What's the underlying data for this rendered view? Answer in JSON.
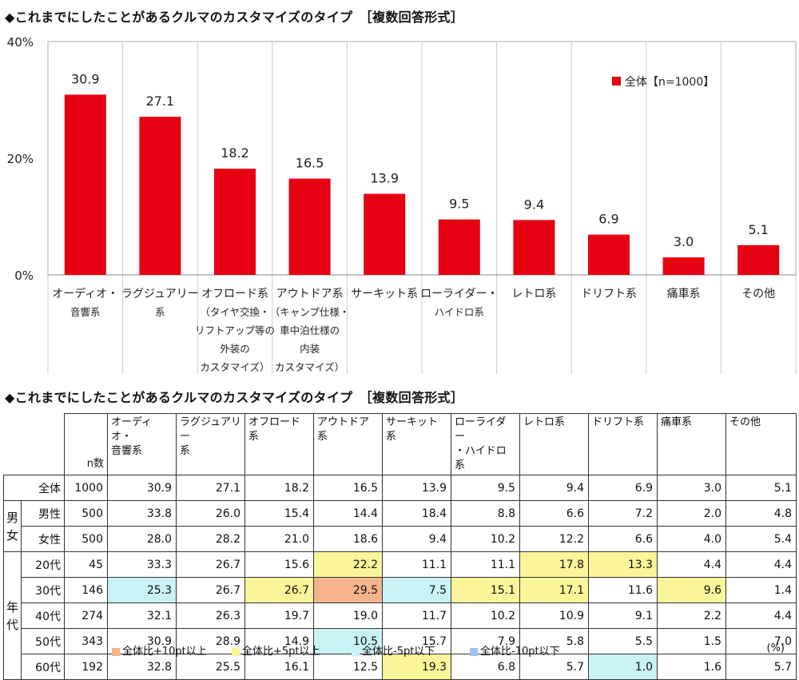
{
  "chart_title": "◆これまでにしたことがあるクルマのカスタマイズのタイプ　［複数回答形式］",
  "table_title": "◆これまでにしたことがあるクルマのカスタマイズのタイプ　［複数回答形式］",
  "chart_data": {
    "type": "bar",
    "categories": [
      [
        "オーディオ・",
        "音響系"
      ],
      [
        "ラグジュアリー",
        "系"
      ],
      [
        "オフロード系",
        "（タイヤ交換・",
        "リフトアップ等の",
        "外装の",
        "カスタマイズ）"
      ],
      [
        "アウトドア系",
        "（キャンプ仕様・",
        "車中泊仕様の",
        "内装",
        "カスタマイズ）"
      ],
      [
        "サーキット系"
      ],
      [
        "ローライダー・",
        "ハイドロ系"
      ],
      [
        "レトロ系"
      ],
      [
        "ドリフト系"
      ],
      [
        "痛車系"
      ],
      [
        "その他"
      ]
    ],
    "series": [
      {
        "name": "全体【n=1000】",
        "values": [
          30.9,
          27.1,
          18.2,
          16.5,
          13.9,
          9.5,
          9.4,
          6.9,
          3.0,
          5.1
        ]
      }
    ],
    "value_labels": [
      "30.9",
      "27.1",
      "18.2",
      "16.5",
      "13.9",
      "9.5",
      "9.4",
      "6.9",
      "3.0",
      "5.1"
    ],
    "y_ticks": [
      "0%",
      "20%",
      "40%"
    ],
    "ylim": [
      0,
      40
    ],
    "color": "#e60012",
    "legend_position": "top-right"
  },
  "table": {
    "n_header": "n数",
    "columns": [
      [
        "オーディオ・",
        "音響系"
      ],
      [
        "ラグジュアリー",
        "系"
      ],
      [
        "オフロード系"
      ],
      [
        "アウトドア系"
      ],
      [
        "サーキット系"
      ],
      [
        "ローライダー",
        "・ハイドロ系"
      ],
      [
        "レトロ系"
      ],
      [
        "ドリフト系"
      ],
      [
        "痛車系"
      ],
      [
        "その他"
      ]
    ],
    "groups": [
      {
        "label": "",
        "rows": [
          {
            "label": "全体",
            "n": "1000",
            "values": [
              "30.9",
              "27.1",
              "18.2",
              "16.5",
              "13.9",
              "9.5",
              "9.4",
              "6.9",
              "3.0",
              "5.1"
            ],
            "marks": [
              0,
              0,
              0,
              0,
              0,
              0,
              0,
              0,
              0,
              0
            ]
          }
        ]
      },
      {
        "label": "男\n女",
        "rows": [
          {
            "label": "男性",
            "n": "500",
            "values": [
              "33.8",
              "26.0",
              "15.4",
              "14.4",
              "18.4",
              "8.8",
              "6.6",
              "7.2",
              "2.0",
              "4.8"
            ],
            "marks": [
              0,
              0,
              0,
              0,
              0,
              0,
              0,
              0,
              0,
              0
            ]
          },
          {
            "label": "女性",
            "n": "500",
            "values": [
              "28.0",
              "28.2",
              "21.0",
              "18.6",
              "9.4",
              "10.2",
              "12.2",
              "6.6",
              "4.0",
              "5.4"
            ],
            "marks": [
              0,
              0,
              0,
              0,
              0,
              0,
              0,
              0,
              0,
              0
            ]
          }
        ]
      },
      {
        "label": "年\n代",
        "rows": [
          {
            "label": "20代",
            "n": "45",
            "values": [
              "33.3",
              "26.7",
              "15.6",
              "22.2",
              "11.1",
              "11.1",
              "17.8",
              "13.3",
              "4.4",
              "4.4"
            ],
            "marks": [
              0,
              0,
              0,
              2,
              0,
              0,
              2,
              2,
              0,
              0
            ]
          },
          {
            "label": "30代",
            "n": "146",
            "values": [
              "25.3",
              "26.7",
              "26.7",
              "29.5",
              "7.5",
              "15.1",
              "17.1",
              "11.6",
              "9.6",
              "1.4"
            ],
            "marks": [
              3,
              0,
              2,
              1,
              3,
              2,
              2,
              0,
              2,
              0
            ]
          },
          {
            "label": "40代",
            "n": "274",
            "values": [
              "32.1",
              "26.3",
              "19.7",
              "19.0",
              "11.7",
              "10.2",
              "10.9",
              "9.1",
              "2.2",
              "4.4"
            ],
            "marks": [
              0,
              0,
              0,
              0,
              0,
              0,
              0,
              0,
              0,
              0
            ]
          },
          {
            "label": "50代",
            "n": "343",
            "values": [
              "30.9",
              "28.9",
              "14.9",
              "10.5",
              "15.7",
              "7.9",
              "5.8",
              "5.5",
              "1.5",
              "7.0"
            ],
            "marks": [
              0,
              0,
              0,
              3,
              0,
              0,
              0,
              0,
              0,
              0
            ]
          },
          {
            "label": "60代",
            "n": "192",
            "values": [
              "32.8",
              "25.5",
              "16.1",
              "12.5",
              "19.3",
              "6.8",
              "5.7",
              "1.0",
              "1.6",
              "5.7"
            ],
            "marks": [
              0,
              0,
              0,
              0,
              2,
              0,
              0,
              3,
              0,
              0
            ]
          }
        ]
      }
    ]
  },
  "legend": [
    {
      "label": "全体比+10pt以上",
      "color": "#f6b48c"
    },
    {
      "label": "全体比+5pt以上",
      "color": "#fbf59a"
    },
    {
      "label": "全体比-5pt以下",
      "color": "#c9f2f6"
    },
    {
      "label": "全体比-10pt以下",
      "color": "#9fc3ec"
    }
  ],
  "unit": "(%)"
}
